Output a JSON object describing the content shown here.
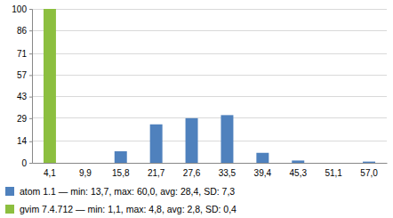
{
  "chart_data": {
    "type": "bar",
    "categories": [
      "4,1",
      "9,9",
      "15,8",
      "21,7",
      "27,6",
      "33,5",
      "39,4",
      "45,3",
      "51,1",
      "57,0"
    ],
    "series": [
      {
        "name": "atom 1.1 — min: 13,7, max: 60,0, avg: 28,4, SD: 7,3",
        "color": "#4f81bd",
        "values": [
          0,
          0,
          7.5,
          25,
          29,
          31,
          6.5,
          1.5,
          0,
          0.8
        ]
      },
      {
        "name": "gvim 7.4.712 — min: 1,1, max: 4,8, avg: 2,8, SD: 0,4",
        "color": "#8cbf3f",
        "values": [
          100,
          0,
          0,
          0,
          0,
          0,
          0,
          0,
          0,
          0
        ]
      }
    ],
    "ylim": [
      0,
      100
    ],
    "yticks": [
      0,
      14,
      29,
      43,
      57,
      71,
      86,
      100
    ],
    "grid": true,
    "legend": "bottom-left"
  }
}
